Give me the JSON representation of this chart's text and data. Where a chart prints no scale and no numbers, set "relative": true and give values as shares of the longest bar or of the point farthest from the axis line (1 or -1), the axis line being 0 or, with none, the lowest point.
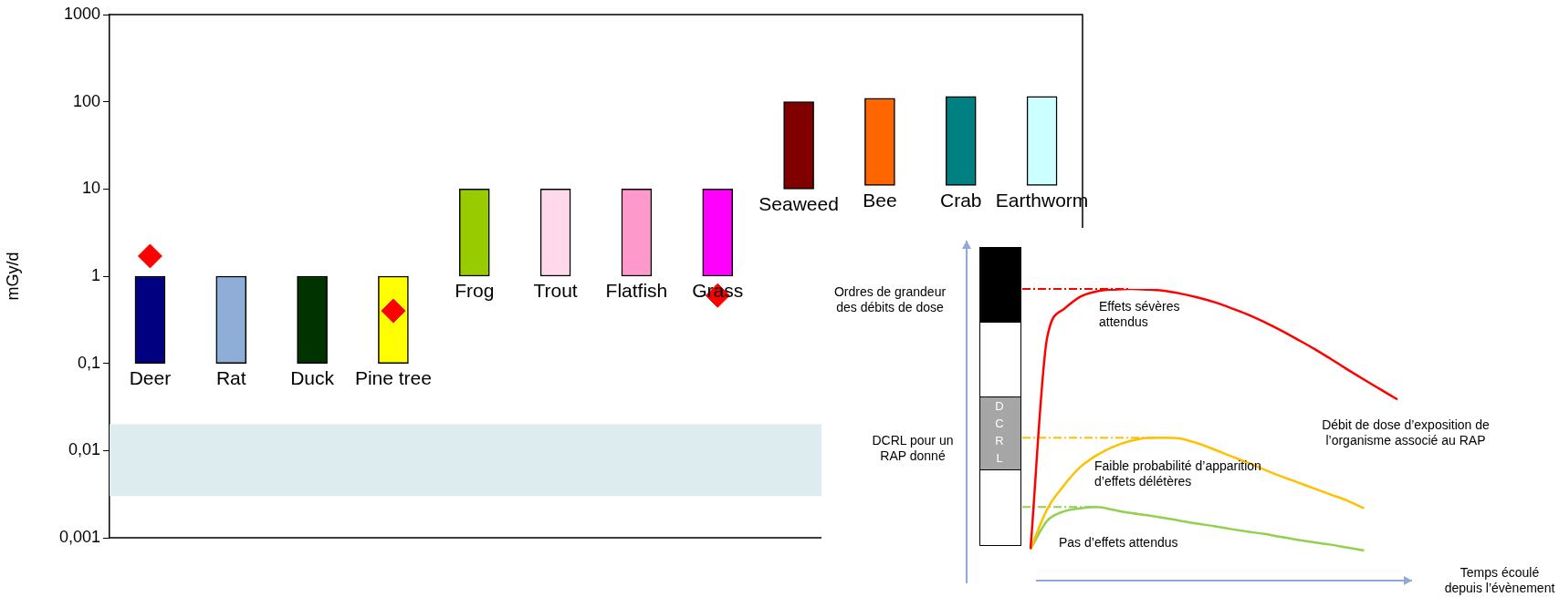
{
  "chart_data": [
    {
      "type": "bar",
      "ylabel": "mGy/d",
      "log": true,
      "categories": [
        "Deer",
        "Rat",
        "Duck",
        "Pine tree",
        "Frog",
        "Trout",
        "Flatfish",
        "Grass",
        "Seaweed",
        "Bee",
        "Crab",
        "Earthworm"
      ],
      "base": [
        0.1,
        0.1,
        0.1,
        0.1,
        1,
        1,
        1,
        1,
        10,
        11,
        11,
        11
      ],
      "values": [
        0.9,
        0.9,
        0.9,
        0.9,
        9,
        9,
        9,
        9,
        90,
        99,
        104,
        104
      ],
      "colors": [
        "#000080",
        "#8eaed8",
        "#003300",
        "#ffff00",
        "#99cc00",
        "#ffd9ea",
        "#ff99cc",
        "#ff00ff",
        "#800000",
        "#ff6600",
        "#008080",
        "#ccffff"
      ],
      "series": [
        {
          "type": "scatter",
          "x": [
            "Deer",
            "Pine tree",
            "Grass"
          ],
          "values": [
            1.7,
            0.4,
            0.6
          ],
          "color": "#ff0000",
          "marker": "diamond"
        }
      ],
      "ylim": [
        0.001,
        1000
      ],
      "yticks": [
        {
          "value": 0.001,
          "label": "0,001"
        },
        {
          "value": 0.01,
          "label": "0,01"
        },
        {
          "value": 0.1,
          "label": "0,1"
        },
        1,
        10,
        100,
        1000
      ],
      "bands": [
        {
          "axis": "y",
          "from": 0.003,
          "to": 0.02,
          "color": "#dcecef"
        }
      ],
      "legend": false
    },
    {
      "type": "line",
      "relative": true,
      "legend": false,
      "marker": "none",
      "xlabel": "Temps écoulé depuis l’évènement",
      "categories": [
        null,
        null,
        null,
        null,
        null,
        null,
        null,
        null,
        null,
        null,
        null,
        null,
        null,
        null,
        null,
        null,
        null,
        null,
        null,
        null,
        null,
        null,
        null
      ],
      "series": [
        {
          "color": "#ff0000",
          "values": [
            0.108,
            0.834,
            0.931,
            0.974,
            0.992,
            0.998,
            1,
            0.998,
            0.994,
            0.984,
            0.971,
            0.955,
            0.935,
            0.913,
            0.887,
            0.858,
            0.827,
            0.795,
            0.76,
            0.724,
            0.689,
            0.655,
            0.621
          ]
        },
        {
          "color": "#ffc000",
          "values": [
            0.108,
            0.245,
            0.326,
            0.39,
            0.431,
            0.46,
            0.479,
            0.489,
            0.49,
            0.487,
            0.471,
            0.45,
            0.427,
            0.405,
            0.381,
            0.358,
            0.337,
            0.316,
            0.295,
            0.274,
            0.248,
            null,
            null
          ]
        },
        {
          "color": "#92d050",
          "values": [
            0.108,
            0.205,
            0.237,
            0.248,
            0.252,
            0.242,
            0.232,
            0.224,
            0.215,
            0.205,
            0.195,
            0.187,
            0.177,
            0.168,
            0.16,
            0.15,
            0.14,
            0.131,
            0.123,
            0.113,
            0.103,
            null,
            null
          ]
        }
      ],
      "ref_lines": [
        {
          "axis": "y",
          "value": 1,
          "color": "#ff0000",
          "line_style": "dashed"
        },
        {
          "axis": "y",
          "value": 0.49,
          "color": "#ffc000",
          "line_style": "dashed"
        },
        {
          "axis": "y",
          "value": 0.252,
          "color": "#92d050",
          "line_style": "dashed"
        }
      ],
      "annotations": [
        "Ordres de grandeur des débits de dose",
        "DCRL pour un RAP donné",
        "DCRL",
        "Effets sévères attendus",
        "Faible probabilité d’apparition d’effets délétères",
        "Pas d’effets attendus",
        "Débit de dose d’exposition de l’organisme associé au RAP"
      ]
    }
  ]
}
